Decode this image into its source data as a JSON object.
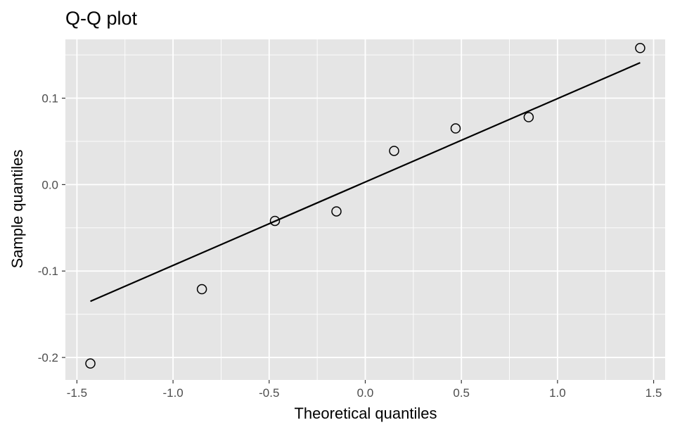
{
  "chart_data": {
    "type": "scatter",
    "title": "Q-Q plot",
    "xlabel": "Theoretical quantiles",
    "ylabel": "Sample quantiles",
    "xlim": [
      -1.56,
      1.56
    ],
    "ylim": [
      -0.226,
      0.168
    ],
    "x_ticks": [
      -1.5,
      -1.0,
      -0.5,
      0.0,
      0.5,
      1.0,
      1.5
    ],
    "x_tick_labels": [
      "-1.5",
      "-1.0",
      "-0.5",
      "0.0",
      "0.5",
      "1.0",
      "1.5"
    ],
    "y_ticks": [
      -0.2,
      -0.1,
      0.0,
      0.1
    ],
    "y_tick_labels": [
      "-0.2",
      "-0.1",
      "0.0",
      "0.1"
    ],
    "grid": true,
    "points": {
      "x": [
        -1.43,
        -0.85,
        -0.47,
        -0.15,
        0.15,
        0.47,
        0.85,
        1.43
      ],
      "y": [
        -0.207,
        -0.121,
        -0.042,
        -0.031,
        0.039,
        0.065,
        0.078,
        0.158
      ]
    },
    "reference_line": {
      "x": [
        -1.43,
        1.43
      ],
      "y": [
        -0.135,
        0.141
      ]
    },
    "colors": {
      "panel_background": "#e5e5e5",
      "grid": "#ffffff",
      "points_fill": "#e5e5e5",
      "points_stroke": "#000000",
      "line": "#000000"
    }
  }
}
